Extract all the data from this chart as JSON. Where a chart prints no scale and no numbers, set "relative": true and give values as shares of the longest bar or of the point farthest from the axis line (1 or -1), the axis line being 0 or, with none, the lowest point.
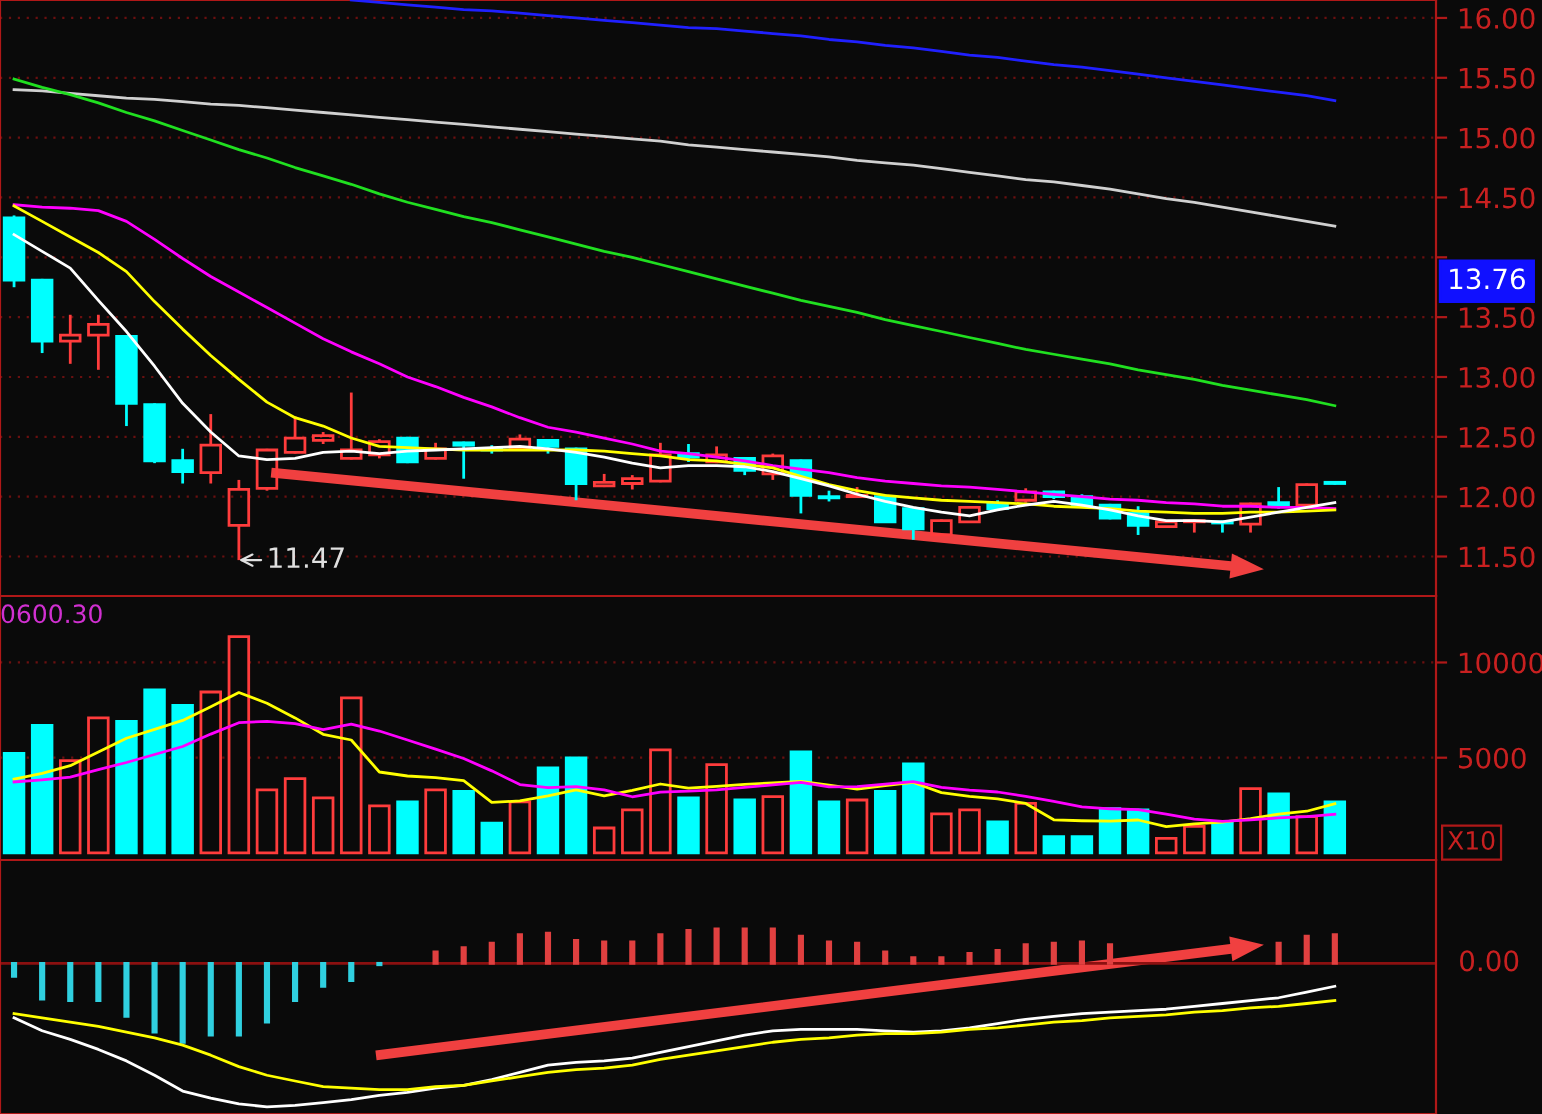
{
  "chart_data": [
    {
      "type": "candlestick",
      "categories": [
        null,
        null,
        null,
        null,
        null,
        null,
        null,
        null,
        null,
        null,
        null,
        null,
        null,
        null,
        null,
        null,
        null,
        null,
        null,
        null,
        null,
        null,
        null,
        null,
        null,
        null,
        null,
        null,
        null,
        null,
        null,
        null,
        null,
        null,
        null,
        null,
        null,
        null,
        null,
        null,
        null,
        null,
        null,
        null,
        null,
        null,
        null,
        null
      ],
      "ohlc": [
        [
          14.33,
          14.35,
          13.75,
          13.81
        ],
        [
          13.81,
          13.82,
          13.2,
          13.3
        ],
        [
          13.3,
          13.52,
          13.11,
          13.35
        ],
        [
          13.35,
          13.52,
          13.06,
          13.44
        ],
        [
          13.34,
          13.34,
          12.59,
          12.78
        ],
        [
          12.77,
          12.78,
          12.28,
          12.3
        ],
        [
          12.3,
          12.4,
          12.11,
          12.21
        ],
        [
          12.2,
          12.69,
          12.11,
          12.43
        ],
        [
          11.76,
          12.14,
          11.47,
          12.06
        ],
        [
          12.07,
          12.4,
          12.05,
          12.39
        ],
        [
          12.37,
          12.67,
          12.36,
          12.49
        ],
        [
          12.47,
          12.54,
          12.44,
          12.51
        ],
        [
          12.32,
          12.87,
          12.31,
          12.39
        ],
        [
          12.35,
          12.48,
          12.32,
          12.46
        ],
        [
          12.49,
          12.5,
          12.28,
          12.29
        ],
        [
          12.32,
          12.45,
          12.31,
          12.4
        ],
        [
          12.45,
          12.46,
          12.15,
          12.43
        ],
        [
          12.4,
          12.43,
          12.36,
          12.39
        ],
        [
          12.4,
          12.52,
          12.39,
          12.48
        ],
        [
          12.47,
          12.48,
          12.36,
          12.42
        ],
        [
          12.4,
          12.41,
          11.97,
          12.11
        ],
        [
          12.09,
          12.19,
          12.08,
          12.12
        ],
        [
          12.11,
          12.18,
          12.06,
          12.15
        ],
        [
          12.13,
          12.45,
          12.12,
          12.35
        ],
        [
          12.36,
          12.44,
          12.29,
          12.33
        ],
        [
          12.29,
          12.42,
          12.28,
          12.35
        ],
        [
          12.32,
          12.33,
          12.18,
          12.22
        ],
        [
          12.19,
          12.36,
          12.14,
          12.34
        ],
        [
          12.3,
          12.31,
          11.86,
          12.01
        ],
        [
          12.0,
          12.05,
          11.96,
          11.99
        ],
        [
          12.0,
          12.08,
          11.99,
          12.01
        ],
        [
          12.0,
          12.02,
          11.78,
          11.79
        ],
        [
          11.9,
          11.91,
          11.64,
          11.73
        ],
        [
          11.68,
          11.81,
          11.67,
          11.8
        ],
        [
          11.79,
          11.92,
          11.78,
          11.91
        ],
        [
          11.94,
          11.97,
          11.89,
          11.9
        ],
        [
          11.97,
          12.07,
          11.95,
          12.04
        ],
        [
          12.04,
          12.05,
          11.98,
          12.0
        ],
        [
          12.0,
          12.02,
          11.92,
          11.93
        ],
        [
          11.93,
          11.94,
          11.81,
          11.82
        ],
        [
          11.86,
          11.92,
          11.68,
          11.76
        ],
        [
          11.75,
          11.8,
          11.74,
          11.79
        ],
        [
          11.79,
          11.81,
          11.7,
          11.8
        ],
        [
          11.79,
          11.8,
          11.7,
          11.78
        ],
        [
          11.77,
          11.95,
          11.7,
          11.94
        ],
        [
          11.95,
          12.08,
          11.9,
          11.93
        ],
        [
          11.93,
          12.11,
          11.92,
          12.1
        ],
        [
          12.12,
          12.13,
          12.1,
          12.11
        ]
      ],
      "colors": [
        "#00ffff",
        "#00ffff",
        "#ff3c3c",
        "#ff3c3c",
        "#00ffff",
        "#00ffff",
        "#00ffff",
        "#ff3c3c",
        "#ff3c3c",
        "#ff3c3c",
        "#ff3c3c",
        "#ff3c3c",
        "#ff3c3c",
        "#ff3c3c",
        "#00ffff",
        "#ff3c3c",
        "#00ffff",
        "#00ffff",
        "#ff3c3c",
        "#00ffff",
        "#00ffff",
        "#ff3c3c",
        "#ff3c3c",
        "#ff3c3c",
        "#00ffff",
        "#ff3c3c",
        "#00ffff",
        "#ff3c3c",
        "#00ffff",
        "#00ffff",
        "#ff3c3c",
        "#00ffff",
        "#00ffff",
        "#ff3c3c",
        "#ff3c3c",
        "#00ffff",
        "#ff3c3c",
        "#00ffff",
        "#00ffff",
        "#00ffff",
        "#00ffff",
        "#ff3c3c",
        "#ff3c3c",
        "#00ffff",
        "#ff3c3c",
        "#00ffff",
        "#ff3c3c",
        "#00ffff"
      ],
      "series": [
        {
          "type": "line",
          "color": "#2020ff",
          "values": [
            null,
            null,
            null,
            null,
            null,
            null,
            null,
            null,
            null,
            null,
            null,
            null,
            16.15,
            16.13,
            16.11,
            16.09,
            16.07,
            16.06,
            16.04,
            16.02,
            16.0,
            15.98,
            15.96,
            15.94,
            15.92,
            15.91,
            15.89,
            15.87,
            15.85,
            15.82,
            15.8,
            15.77,
            15.75,
            15.72,
            15.69,
            15.67,
            15.64,
            15.61,
            15.59,
            15.56,
            15.53,
            15.5,
            15.47,
            15.44,
            15.41,
            15.38,
            15.35,
            15.31
          ]
        },
        {
          "type": "line",
          "color": "#d0d0d0",
          "values": [
            15.4,
            15.39,
            15.37,
            15.35,
            15.33,
            15.32,
            15.3,
            15.28,
            15.27,
            15.25,
            15.23,
            15.21,
            15.19,
            15.17,
            15.15,
            15.13,
            15.11,
            15.09,
            15.07,
            15.05,
            15.03,
            15.01,
            14.99,
            14.97,
            14.94,
            14.92,
            14.9,
            14.88,
            14.86,
            14.84,
            14.81,
            14.79,
            14.77,
            14.74,
            14.71,
            14.68,
            14.65,
            14.63,
            14.6,
            14.57,
            14.53,
            14.49,
            14.46,
            14.42,
            14.38,
            14.34,
            14.3,
            14.26
          ]
        },
        {
          "type": "line",
          "color": "#20e020",
          "values": [
            15.49,
            15.42,
            15.36,
            15.29,
            15.21,
            15.14,
            15.06,
            14.98,
            14.9,
            14.83,
            14.75,
            14.68,
            14.61,
            14.53,
            14.46,
            14.4,
            14.34,
            14.29,
            14.23,
            14.17,
            14.11,
            14.05,
            14.0,
            13.94,
            13.88,
            13.82,
            13.76,
            13.7,
            13.64,
            13.59,
            13.54,
            13.48,
            13.43,
            13.38,
            13.33,
            13.28,
            13.23,
            13.19,
            13.15,
            13.11,
            13.06,
            13.02,
            12.98,
            12.93,
            12.89,
            12.85,
            12.81,
            12.76
          ]
        },
        {
          "type": "line",
          "color": "#ff00ff",
          "values": [
            14.44,
            14.42,
            14.41,
            14.39,
            14.3,
            14.15,
            13.99,
            13.84,
            13.71,
            13.58,
            13.45,
            13.32,
            13.21,
            13.11,
            13.0,
            12.92,
            12.83,
            12.75,
            12.66,
            12.58,
            12.54,
            12.49,
            12.44,
            12.38,
            12.36,
            12.33,
            12.3,
            12.26,
            12.23,
            12.2,
            12.16,
            12.13,
            12.11,
            12.09,
            12.08,
            12.06,
            12.04,
            12.02,
            12.0,
            11.98,
            11.97,
            11.95,
            11.94,
            11.92,
            11.92,
            11.91,
            11.91,
            11.9
          ]
        },
        {
          "type": "line",
          "color": "#ffff00",
          "values": [
            14.43,
            14.3,
            14.17,
            14.04,
            13.88,
            13.63,
            13.4,
            13.18,
            12.98,
            12.79,
            12.66,
            12.59,
            12.49,
            12.42,
            12.41,
            12.4,
            12.39,
            12.39,
            12.39,
            12.39,
            12.39,
            12.38,
            12.36,
            12.34,
            12.31,
            12.3,
            12.27,
            12.24,
            12.17,
            12.1,
            12.05,
            12.01,
            11.99,
            11.97,
            11.96,
            11.95,
            11.94,
            11.92,
            11.91,
            11.9,
            11.88,
            11.87,
            11.86,
            11.86,
            11.87,
            11.87,
            11.88,
            11.89
          ]
        },
        {
          "type": "line",
          "color": "#ffffff",
          "values": [
            14.19,
            14.05,
            13.91,
            13.64,
            13.38,
            13.09,
            12.78,
            12.54,
            12.34,
            12.31,
            12.32,
            12.37,
            12.38,
            12.36,
            12.38,
            12.39,
            12.4,
            12.41,
            12.42,
            12.4,
            12.37,
            12.33,
            12.28,
            12.24,
            12.26,
            12.26,
            12.25,
            12.21,
            12.15,
            12.09,
            12.02,
            11.96,
            11.91,
            11.87,
            11.84,
            11.89,
            11.93,
            11.96,
            11.93,
            11.89,
            11.84,
            11.8,
            11.8,
            11.79,
            11.83,
            11.87,
            11.91,
            11.95
          ]
        }
      ],
      "ylim": [
        11.17,
        16.15
      ],
      "yticks": [
        {
          "value": 11.5,
          "label": "11.50"
        },
        {
          "value": 12,
          "label": "12.00"
        },
        {
          "value": 12.5,
          "label": "12.50"
        },
        {
          "value": 13,
          "label": "13.00"
        },
        {
          "value": 13.5,
          "label": "13.50"
        },
        {
          "value": 14,
          "label": null
        },
        {
          "value": 14.5,
          "label": "14.50"
        },
        {
          "value": 15,
          "label": "15.00"
        },
        {
          "value": 15.5,
          "label": "15.50"
        },
        {
          "value": 16,
          "label": "16.00"
        }
      ],
      "grid": "y",
      "tick_labels": "y",
      "annotations": [
        "11.47",
        "13.76"
      ]
    },
    {
      "type": "bar",
      "categories": [
        null,
        null,
        null,
        null,
        null,
        null,
        null,
        null,
        null,
        null,
        null,
        null,
        null,
        null,
        null,
        null,
        null,
        null,
        null,
        null,
        null,
        null,
        null,
        null,
        null,
        null,
        null,
        null,
        null,
        null,
        null,
        null,
        null,
        null,
        null,
        null,
        null,
        null,
        null,
        null,
        null,
        null,
        null,
        null,
        null,
        null,
        null,
        null
      ],
      "series": [
        {
          "type": "bar",
          "values": [
            5230,
            6700,
            4850,
            7090,
            6910,
            8560,
            7750,
            8450,
            11360,
            3310,
            3900,
            2890,
            8140,
            2470,
            2680,
            3310,
            3230,
            1560,
            2680,
            4460,
            4990,
            1310,
            2260,
            5410,
            2890,
            4640,
            2780,
            2960,
            5300,
            2680,
            2780,
            3230,
            4670,
            2050,
            2260,
            1630,
            2600,
            860,
            860,
            2330,
            2260,
            760,
            1390,
            1630,
            3380,
            3100,
            1910,
            2680
          ],
          "colors": [
            "#00ffff",
            "#00ffff",
            "#ff3c3c",
            "#ff3c3c",
            "#00ffff",
            "#00ffff",
            "#00ffff",
            "#ff3c3c",
            "#ff3c3c",
            "#ff3c3c",
            "#ff3c3c",
            "#ff3c3c",
            "#ff3c3c",
            "#ff3c3c",
            "#00ffff",
            "#ff3c3c",
            "#00ffff",
            "#00ffff",
            "#ff3c3c",
            "#00ffff",
            "#00ffff",
            "#ff3c3c",
            "#ff3c3c",
            "#ff3c3c",
            "#00ffff",
            "#ff3c3c",
            "#00ffff",
            "#ff3c3c",
            "#00ffff",
            "#00ffff",
            "#ff3c3c",
            "#00ffff",
            "#00ffff",
            "#ff3c3c",
            "#ff3c3c",
            "#00ffff",
            "#ff3c3c",
            "#00ffff",
            "#00ffff",
            "#00ffff",
            "#00ffff",
            "#ff3c3c",
            "#ff3c3c",
            "#00ffff",
            "#ff3c3c",
            "#00ffff",
            "#ff3c3c",
            "#00ffff"
          ]
        },
        {
          "type": "line",
          "color": "#ffff00",
          "values": [
            3880,
            4180,
            4580,
            5300,
            6020,
            6490,
            6960,
            7680,
            8420,
            7860,
            7090,
            6230,
            5930,
            4250,
            4040,
            3960,
            3800,
            2660,
            2730,
            3000,
            3310,
            3000,
            3280,
            3620,
            3400,
            3500,
            3600,
            3680,
            3760,
            3560,
            3350,
            3530,
            3700,
            3170,
            2970,
            2840,
            2600,
            1740,
            1690,
            1670,
            1730,
            1380,
            1530,
            1620,
            1800,
            2040,
            2190,
            2580
          ]
        },
        {
          "type": "line",
          "color": "#ff00ff",
          "values": [
            3730,
            3840,
            3980,
            4370,
            4750,
            5170,
            5590,
            6240,
            6840,
            6910,
            6790,
            6480,
            6760,
            6400,
            5930,
            5450,
            4960,
            4310,
            3590,
            3430,
            3480,
            3310,
            2950,
            3190,
            3250,
            3310,
            3440,
            3580,
            3700,
            3470,
            3480,
            3610,
            3740,
            3440,
            3300,
            3200,
            2970,
            2710,
            2420,
            2320,
            2270,
            2040,
            1770,
            1660,
            1740,
            1840,
            1910,
            2030
          ]
        }
      ],
      "ylim": [
        -370,
        13490
      ],
      "yticks": [
        5000,
        10000
      ],
      "grid": "y",
      "tick_labels": "y",
      "annotations": [
        "0600.30",
        "X10"
      ]
    },
    {
      "type": "bar",
      "relative": true,
      "categories": [
        null,
        null,
        null,
        null,
        null,
        null,
        null,
        null,
        null,
        null,
        null,
        null,
        null,
        null,
        null,
        null,
        null,
        null,
        null,
        null,
        null,
        null,
        null,
        null,
        null,
        null,
        null,
        null,
        null,
        null,
        null,
        null,
        null,
        null,
        null,
        null,
        null,
        null,
        null,
        null,
        null,
        null,
        null,
        null,
        null,
        null,
        null,
        null
      ],
      "series": [
        {
          "type": "bar",
          "values": [
            -0.09,
            -0.25,
            -0.26,
            -0.26,
            -0.37,
            -0.48,
            -0.55,
            -0.5,
            -0.5,
            -0.41,
            -0.26,
            -0.16,
            -0.12,
            -0.01,
            null,
            0.08,
            0.11,
            0.14,
            0.2,
            0.21,
            0.16,
            0.15,
            0.15,
            0.2,
            0.23,
            0.24,
            0.24,
            0.24,
            0.19,
            0.15,
            0.14,
            0.08,
            0.04,
            0.04,
            0.07,
            0.09,
            0.13,
            0.14,
            0.15,
            0.13,
            null,
            null,
            null,
            null,
            null,
            0.14,
            0.19,
            0.2
          ],
          "colors": [
            "#30d0e0",
            "#30d0e0",
            "#30d0e0",
            "#30d0e0",
            "#30d0e0",
            "#30d0e0",
            "#30d0e0",
            "#30d0e0",
            "#30d0e0",
            "#30d0e0",
            "#30d0e0",
            "#30d0e0",
            "#30d0e0",
            "#30d0e0",
            "#30d0e0",
            "#e04040",
            "#e04040",
            "#e04040",
            "#e04040",
            "#e04040",
            "#e04040",
            "#e04040",
            "#e04040",
            "#e04040",
            "#e04040",
            "#e04040",
            "#e04040",
            "#e04040",
            "#e04040",
            "#e04040",
            "#e04040",
            "#e04040",
            "#e04040",
            "#e04040",
            "#e04040",
            "#e04040",
            "#e04040",
            "#e04040",
            "#e04040",
            "#e04040",
            "#e04040",
            "#e04040",
            "#e04040",
            "#e04040",
            "#e04040",
            "#e04040",
            "#e04040",
            "#e04040"
          ]
        },
        {
          "type": "line",
          "color": "#ffffff",
          "values": [
            -0.38,
            -0.47,
            -0.53,
            -0.6,
            -0.68,
            -0.78,
            -0.89,
            -0.94,
            -0.98,
            -1.0,
            -0.99,
            -0.97,
            -0.95,
            -0.92,
            -0.9,
            -0.87,
            -0.85,
            -0.81,
            -0.76,
            -0.71,
            -0.69,
            -0.68,
            -0.66,
            -0.62,
            -0.58,
            -0.54,
            -0.5,
            -0.47,
            -0.46,
            -0.46,
            -0.46,
            -0.47,
            -0.48,
            -0.47,
            -0.45,
            -0.42,
            -0.39,
            -0.37,
            -0.35,
            -0.34,
            -0.33,
            -0.32,
            -0.3,
            -0.28,
            -0.26,
            -0.24,
            -0.2,
            -0.16
          ]
        },
        {
          "type": "line",
          "color": "#ffff00",
          "values": [
            -0.35,
            -0.38,
            -0.41,
            -0.44,
            -0.48,
            -0.52,
            -0.57,
            -0.64,
            -0.72,
            -0.78,
            -0.82,
            -0.86,
            -0.87,
            -0.88,
            -0.88,
            -0.86,
            -0.85,
            -0.82,
            -0.79,
            -0.76,
            -0.74,
            -0.73,
            -0.71,
            -0.67,
            -0.64,
            -0.61,
            -0.58,
            -0.55,
            -0.53,
            -0.52,
            -0.5,
            -0.49,
            -0.49,
            -0.48,
            -0.46,
            -0.45,
            -0.43,
            -0.41,
            -0.4,
            -0.38,
            -0.37,
            -0.36,
            -0.34,
            -0.33,
            -0.31,
            -0.3,
            -0.28,
            -0.26
          ]
        }
      ],
      "tick_labels": false,
      "ref_lines": [
        {
          "axis": "y",
          "value": 0,
          "label": "0.00",
          "color": "#8b1010"
        }
      ]
    }
  ]
}
